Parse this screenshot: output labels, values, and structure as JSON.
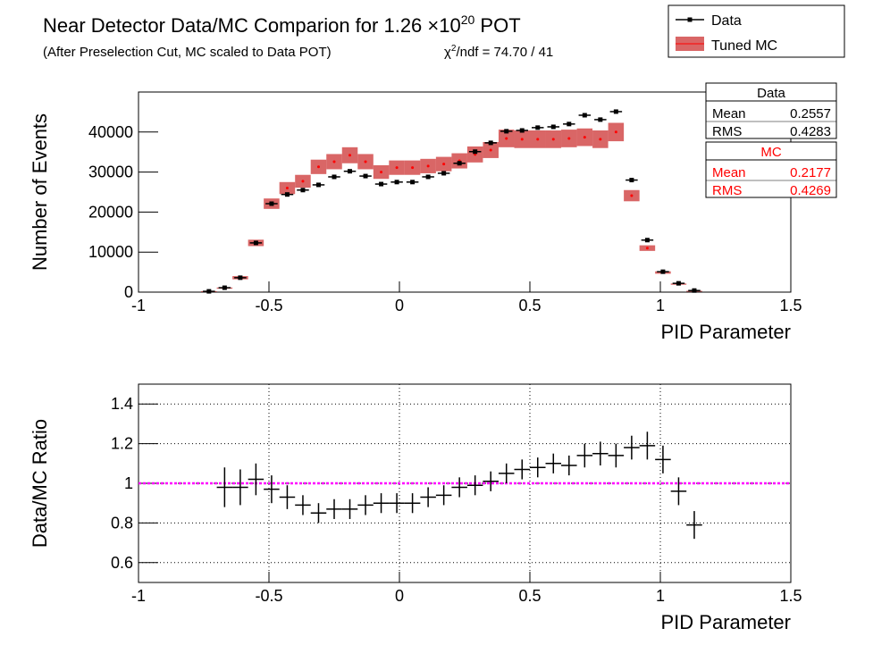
{
  "chart_data": [
    {
      "type": "datamc",
      "title": [
        "Near Detector Data/MC Comparion for 1.26 ×10",
        "20",
        " POT"
      ],
      "subtitle": "(After Preselection Cut, MC scaled to Data POT)",
      "annotation": [
        "χ",
        "2",
        "/ndf = 74.70 / 41"
      ],
      "xlabel": "PID Parameter",
      "ylabel": "Number of Events",
      "xlim": [
        -1,
        1.5
      ],
      "xticks": [
        -1,
        -0.5,
        0,
        0.5,
        1,
        1.5
      ],
      "ylim": [
        0,
        50000
      ],
      "yticks": [
        0,
        10000,
        20000,
        30000,
        40000
      ],
      "legend": "top-right",
      "grid": false,
      "x": [
        -0.73,
        -0.67,
        -0.61,
        -0.55,
        -0.49,
        -0.43,
        -0.37,
        -0.31,
        -0.25,
        -0.19,
        -0.13,
        -0.07,
        -0.01,
        0.05,
        0.11,
        0.17,
        0.23,
        0.29,
        0.35,
        0.41,
        0.47,
        0.53,
        0.59,
        0.65,
        0.71,
        0.77,
        0.83,
        0.89,
        0.95,
        1.01,
        1.07,
        1.13
      ],
      "series": [
        {
          "name": "Data",
          "color": "#000000",
          "values": [
            200,
            1100,
            3600,
            12300,
            22100,
            24400,
            25500,
            26800,
            28800,
            30200,
            29000,
            27000,
            27500,
            27500,
            28800,
            29700,
            32200,
            35100,
            37300,
            40200,
            40400,
            41100,
            41300,
            42000,
            44200,
            43100,
            45100,
            28000,
            13000,
            5100,
            2200,
            400
          ]
        },
        {
          "name": "Tuned MC",
          "color": "#cc3333",
          "values": [
            200,
            1000,
            3600,
            12300,
            22100,
            26000,
            27700,
            31300,
            32600,
            34200,
            32600,
            30000,
            31100,
            31100,
            31500,
            32000,
            32800,
            34400,
            35500,
            38400,
            38200,
            38200,
            38200,
            38400,
            38700,
            38200,
            40000,
            24100,
            11000,
            4900,
            2000,
            300
          ],
          "errors": [
            50,
            150,
            400,
            800,
            1300,
            1500,
            1600,
            1800,
            1900,
            2000,
            1900,
            1700,
            1800,
            1800,
            1800,
            1800,
            1900,
            2000,
            2000,
            2200,
            2200,
            2200,
            2200,
            2200,
            2200,
            2200,
            2300,
            1400,
            700,
            300,
            150,
            40
          ]
        }
      ],
      "stats": [
        {
          "title": "Data",
          "color": "#000000",
          "rows": [
            {
              "label": "Mean",
              "value": 0.2557
            },
            {
              "label": "RMS",
              "value": 0.4283
            }
          ]
        },
        {
          "title": "MC",
          "color": "#ff0000",
          "rows": [
            {
              "label": "Mean",
              "value": 0.2177
            },
            {
              "label": "RMS",
              "value": 0.4269
            }
          ]
        }
      ]
    },
    {
      "type": "ratio",
      "xlabel": "PID Parameter",
      "ylabel": "Data/MC Ratio",
      "xlim": [
        -1,
        1.5
      ],
      "xticks": [
        -1,
        -0.5,
        0,
        0.5,
        1,
        1.5
      ],
      "ylim": [
        0.5,
        1.5
      ],
      "yticks": [
        0.6,
        0.8,
        1,
        1.2,
        1.4
      ],
      "grid": true,
      "reference": 1,
      "reference_color": "#ff00ff",
      "x": [
        -0.67,
        -0.61,
        -0.55,
        -0.49,
        -0.43,
        -0.37,
        -0.31,
        -0.25,
        -0.19,
        -0.13,
        -0.07,
        -0.01,
        0.05,
        0.11,
        0.17,
        0.23,
        0.29,
        0.35,
        0.41,
        0.47,
        0.53,
        0.59,
        0.65,
        0.71,
        0.77,
        0.83,
        0.89,
        0.95,
        1.01,
        1.07,
        1.13
      ],
      "color": "#000000",
      "values": [
        0.98,
        0.98,
        1.02,
        0.97,
        0.93,
        0.89,
        0.85,
        0.87,
        0.87,
        0.89,
        0.9,
        0.9,
        0.9,
        0.93,
        0.94,
        0.98,
        0.99,
        1.01,
        1.05,
        1.07,
        1.08,
        1.1,
        1.09,
        1.14,
        1.15,
        1.14,
        1.18,
        1.19,
        1.12,
        0.96,
        0.79
      ],
      "errors": [
        0.1,
        0.09,
        0.08,
        0.07,
        0.06,
        0.05,
        0.05,
        0.05,
        0.05,
        0.05,
        0.05,
        0.05,
        0.05,
        0.05,
        0.05,
        0.05,
        0.05,
        0.05,
        0.05,
        0.05,
        0.05,
        0.05,
        0.05,
        0.06,
        0.06,
        0.06,
        0.06,
        0.07,
        0.07,
        0.07,
        0.07
      ]
    }
  ]
}
